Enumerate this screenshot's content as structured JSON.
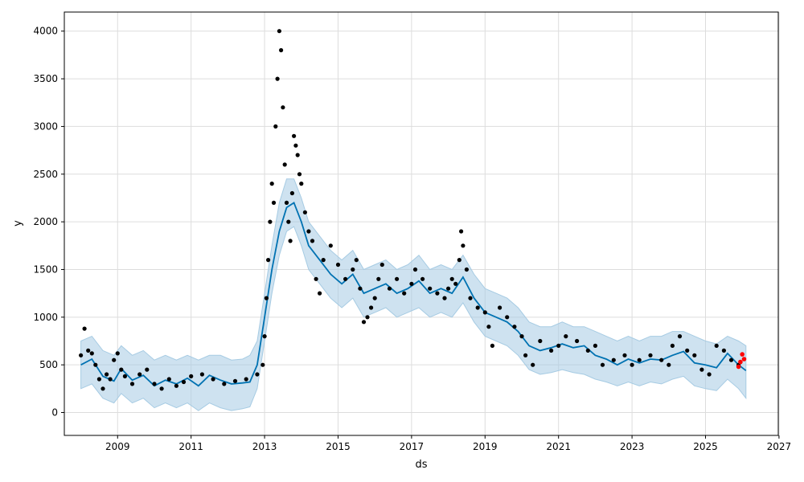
{
  "chart_data": {
    "type": "scatter",
    "title": "",
    "xlabel": "ds",
    "ylabel": "y",
    "xlim": [
      2007.55,
      2026.98
    ],
    "ylim": [
      -240,
      4200
    ],
    "grid": true,
    "x_ticks": [
      {
        "value": 2009,
        "label": "2009"
      },
      {
        "value": 2011,
        "label": "2011"
      },
      {
        "value": 2013,
        "label": "2013"
      },
      {
        "value": 2015,
        "label": "2015"
      },
      {
        "value": 2017,
        "label": "2017"
      },
      {
        "value": 2019,
        "label": "2019"
      },
      {
        "value": 2021,
        "label": "2021"
      },
      {
        "value": 2023,
        "label": "2023"
      },
      {
        "value": 2025,
        "label": "2025"
      },
      {
        "value": 2027,
        "label": "2027"
      }
    ],
    "y_ticks": [
      {
        "value": 0,
        "label": "0"
      },
      {
        "value": 500,
        "label": "500"
      },
      {
        "value": 1000,
        "label": "1000"
      },
      {
        "value": 1500,
        "label": "1500"
      },
      {
        "value": 2000,
        "label": "2000"
      },
      {
        "value": 2500,
        "label": "2500"
      },
      {
        "value": 3000,
        "label": "3000"
      },
      {
        "value": 3500,
        "label": "3500"
      },
      {
        "value": 4000,
        "label": "4000"
      }
    ],
    "colors": {
      "observed": "#000000",
      "recent": "#ff0000",
      "forecast": "#0072B2",
      "interval": "#a6cbe3"
    },
    "forecast": {
      "x": [
        2008.0,
        2008.3,
        2008.6,
        2008.9,
        2009.1,
        2009.4,
        2009.7,
        2010.0,
        2010.3,
        2010.6,
        2010.9,
        2011.2,
        2011.5,
        2011.8,
        2012.1,
        2012.4,
        2012.6,
        2012.8,
        2013.0,
        2013.2,
        2013.4,
        2013.6,
        2013.8,
        2014.0,
        2014.2,
        2014.5,
        2014.8,
        2015.1,
        2015.4,
        2015.7,
        2016.0,
        2016.3,
        2016.6,
        2016.9,
        2017.2,
        2017.5,
        2017.8,
        2018.1,
        2018.4,
        2018.7,
        2019.0,
        2019.3,
        2019.6,
        2019.9,
        2020.2,
        2020.5,
        2020.8,
        2021.1,
        2021.4,
        2021.7,
        2022.0,
        2022.3,
        2022.6,
        2022.9,
        2023.2,
        2023.5,
        2023.8,
        2024.1,
        2024.4,
        2024.7,
        2025.0,
        2025.3,
        2025.6,
        2025.9,
        2026.1
      ],
      "yhat": [
        500,
        560,
        380,
        330,
        460,
        340,
        390,
        280,
        340,
        300,
        360,
        280,
        390,
        340,
        300,
        310,
        320,
        500,
        1000,
        1500,
        1900,
        2150,
        2200,
        2000,
        1750,
        1600,
        1450,
        1350,
        1450,
        1250,
        1300,
        1350,
        1250,
        1300,
        1380,
        1250,
        1300,
        1250,
        1420,
        1200,
        1050,
        1000,
        950,
        850,
        700,
        650,
        680,
        720,
        680,
        700,
        600,
        560,
        500,
        560,
        520,
        560,
        550,
        600,
        640,
        520,
        500,
        470,
        620,
        500,
        440
      ],
      "upper": [
        750,
        800,
        650,
        600,
        700,
        600,
        650,
        550,
        600,
        550,
        600,
        550,
        600,
        600,
        550,
        560,
        600,
        750,
        1250,
        1750,
        2200,
        2450,
        2450,
        2250,
        2000,
        1850,
        1700,
        1600,
        1700,
        1500,
        1550,
        1600,
        1500,
        1550,
        1650,
        1500,
        1550,
        1500,
        1650,
        1450,
        1300,
        1250,
        1200,
        1100,
        950,
        900,
        900,
        950,
        900,
        900,
        850,
        800,
        750,
        800,
        750,
        800,
        800,
        850,
        850,
        800,
        750,
        720,
        800,
        750,
        700
      ],
      "lower": [
        250,
        300,
        150,
        100,
        200,
        100,
        150,
        50,
        100,
        50,
        100,
        20,
        100,
        50,
        20,
        40,
        60,
        250,
        750,
        1250,
        1650,
        1900,
        1950,
        1750,
        1500,
        1350,
        1200,
        1100,
        1200,
        1000,
        1050,
        1100,
        1000,
        1050,
        1100,
        1000,
        1050,
        1000,
        1150,
        950,
        800,
        750,
        700,
        600,
        450,
        400,
        420,
        450,
        420,
        400,
        350,
        320,
        280,
        320,
        280,
        320,
        300,
        350,
        380,
        280,
        250,
        230,
        350,
        250,
        150
      ]
    },
    "observed": {
      "x": [
        2008.0,
        2008.1,
        2008.2,
        2008.3,
        2008.4,
        2008.5,
        2008.6,
        2008.7,
        2008.8,
        2008.9,
        2009.0,
        2009.1,
        2009.2,
        2009.4,
        2009.6,
        2009.8,
        2010.0,
        2010.2,
        2010.4,
        2010.6,
        2010.8,
        2011.0,
        2011.3,
        2011.6,
        2011.9,
        2012.2,
        2012.5,
        2012.8,
        2012.95,
        2013.0,
        2013.05,
        2013.1,
        2013.15,
        2013.2,
        2013.25,
        2013.3,
        2013.35,
        2013.4,
        2013.45,
        2013.5,
        2013.55,
        2013.6,
        2013.65,
        2013.7,
        2013.75,
        2013.8,
        2013.85,
        2013.9,
        2013.95,
        2014.0,
        2014.1,
        2014.2,
        2014.3,
        2014.4,
        2014.5,
        2014.6,
        2014.8,
        2015.0,
        2015.2,
        2015.4,
        2015.5,
        2015.6,
        2015.7,
        2015.8,
        2015.9,
        2016.0,
        2016.1,
        2016.2,
        2016.4,
        2016.6,
        2016.8,
        2017.0,
        2017.1,
        2017.3,
        2017.5,
        2017.7,
        2017.9,
        2018.0,
        2018.1,
        2018.2,
        2018.3,
        2018.35,
        2018.4,
        2018.5,
        2018.6,
        2018.8,
        2019.0,
        2019.1,
        2019.2,
        2019.4,
        2019.6,
        2019.8,
        2020.0,
        2020.1,
        2020.3,
        2020.5,
        2020.8,
        2021.0,
        2021.2,
        2021.5,
        2021.8,
        2022.0,
        2022.2,
        2022.5,
        2022.8,
        2023.0,
        2023.2,
        2023.5,
        2023.8,
        2024.0,
        2024.1,
        2024.3,
        2024.5,
        2024.7,
        2024.9,
        2025.1,
        2025.3,
        2025.5,
        2025.7,
        2025.9
      ],
      "y": [
        600,
        880,
        650,
        620,
        500,
        350,
        250,
        400,
        350,
        550,
        620,
        450,
        380,
        300,
        400,
        450,
        300,
        250,
        350,
        280,
        320,
        380,
        400,
        350,
        300,
        330,
        350,
        400,
        500,
        800,
        1200,
        1600,
        2000,
        2400,
        2200,
        3000,
        3500,
        4000,
        3800,
        3200,
        2600,
        2200,
        2000,
        1800,
        2300,
        2900,
        2800,
        2700,
        2500,
        2400,
        2100,
        1900,
        1800,
        1400,
        1250,
        1600,
        1750,
        1550,
        1400,
        1500,
        1600,
        1300,
        950,
        1000,
        1100,
        1200,
        1400,
        1550,
        1300,
        1400,
        1250,
        1350,
        1500,
        1400,
        1300,
        1250,
        1200,
        1300,
        1400,
        1350,
        1600,
        1900,
        1750,
        1500,
        1200,
        1100,
        1050,
        900,
        700,
        1100,
        1000,
        900,
        800,
        600,
        500,
        750,
        650,
        700,
        800,
        750,
        650,
        700,
        500,
        550,
        600,
        500,
        550,
        600,
        550,
        500,
        700,
        800,
        650,
        600,
        450,
        400,
        700,
        650,
        550,
        500
      ]
    },
    "recent": {
      "x": [
        2025.9,
        2025.95,
        2026.0,
        2026.05
      ],
      "y": [
        480,
        530,
        610,
        560
      ]
    }
  }
}
